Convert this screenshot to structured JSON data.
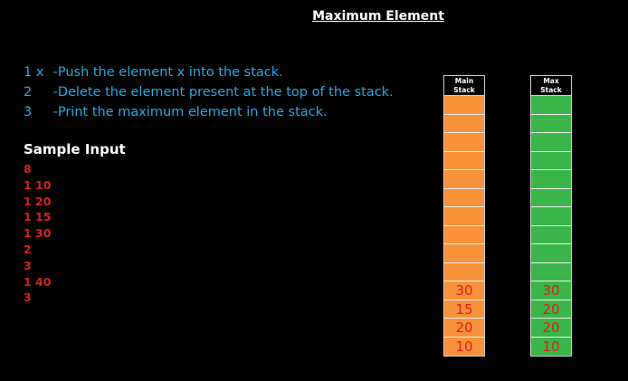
{
  "title": "Maximum Element",
  "operations": [
    {
      "num": "1 x",
      "desc": "-Push the element x into the stack."
    },
    {
      "num": "2",
      "desc": "-Delete the element present at the top of the stack."
    },
    {
      "num": "3",
      "desc": "-Print the maximum element in the stack."
    }
  ],
  "sample_title": "Sample Input",
  "sample_input": [
    "8",
    "1 10",
    "1 20",
    "1 15",
    "1 30",
    "2",
    "3",
    "1 40",
    "3"
  ],
  "main_stack": {
    "label_line1": "Main",
    "label_line2": "Stack",
    "values_top_to_bottom": [
      "30",
      "15",
      "20",
      "10"
    ],
    "total_cells": 14
  },
  "max_stack": {
    "label_line1": "Max",
    "label_line2": "Stack",
    "values_top_to_bottom": [
      "30",
      "20",
      "20",
      "10"
    ],
    "total_cells": 14
  },
  "colors": {
    "main_fill": "#f7923a",
    "max_fill": "#3ab54a",
    "op_text": "#29a8e0",
    "input_text": "#d4231f",
    "value_text": "#e81b1b"
  }
}
